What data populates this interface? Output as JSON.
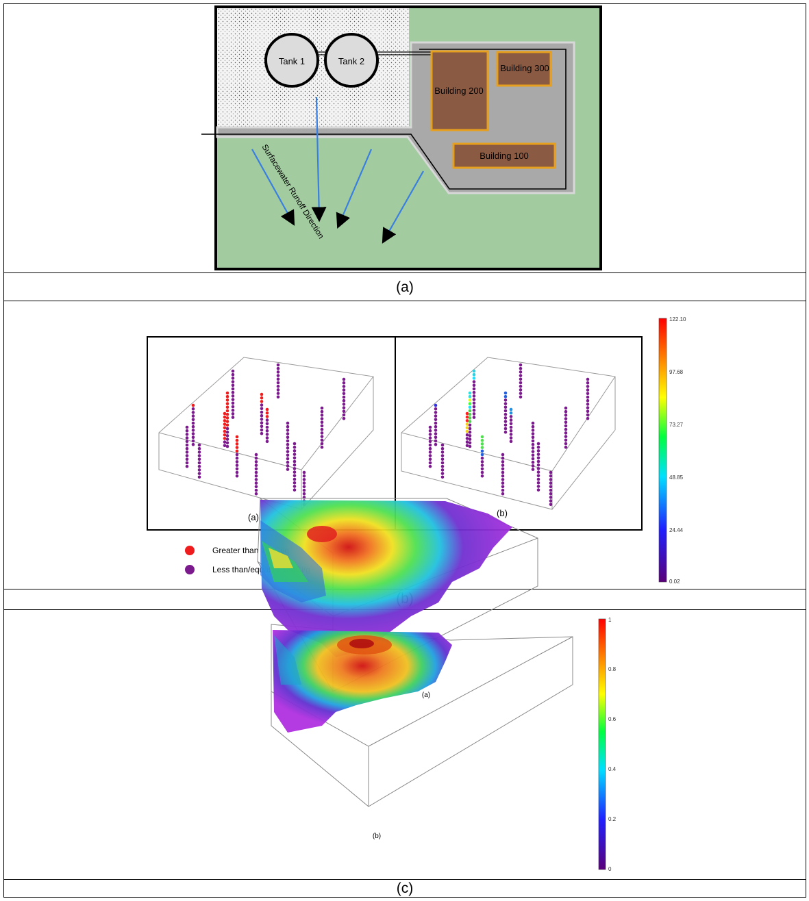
{
  "panel_a": {
    "caption": "(a)",
    "tanks": [
      {
        "label": "Tank 1"
      },
      {
        "label": "Tank 2"
      }
    ],
    "buildings": [
      {
        "label": "Building 200"
      },
      {
        "label": "Building 300"
      },
      {
        "label": "Building 100"
      }
    ],
    "runoff_label": "Surfacewater Runoff Direction",
    "colors": {
      "grass": "#a2cba0",
      "pad": "#a9a9a9",
      "building_fill": "#8b5a43",
      "building_border": "#e6a01e",
      "arrow": "#3a7fe0"
    }
  },
  "panel_b": {
    "caption": "(b)",
    "sub_a": "(a)",
    "sub_b": "(b)",
    "legend": [
      {
        "label": "Greater than 18pCi/g",
        "color": "#ee1c1c"
      },
      {
        "label": "Less than/equal to 18pCi/g",
        "color": "#7a1a8c"
      }
    ],
    "colorbar_ticks": [
      "122.10",
      "97.68",
      "73.27",
      "48.85",
      "24.44",
      "0.02"
    ]
  },
  "panel_c": {
    "caption": "(c)",
    "sub_a": "(a)",
    "sub_b": "(b)",
    "colorbar_ticks": [
      "1",
      "0.8",
      "0.6",
      "0.4",
      "0.2",
      "0"
    ]
  }
}
